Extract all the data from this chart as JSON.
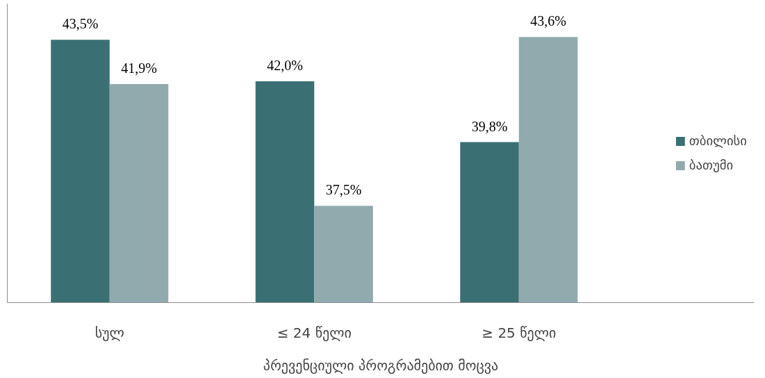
{
  "chart_data": {
    "type": "bar",
    "categories": [
      "სულ",
      "≤ 24 წელი",
      "≥ 25 წელი"
    ],
    "xlabel": "პრევენციული პროგრამებით მოცვა",
    "series": [
      {
        "name": "თბილისი",
        "color": "#3a7074",
        "values": [
          43.5,
          42.0,
          39.8
        ],
        "value_labels": [
          "43,5%",
          "42,0%",
          "39,8%"
        ]
      },
      {
        "name": "ბათუმი",
        "color": "#91aaad",
        "values": [
          41.9,
          37.5,
          43.6
        ],
        "value_labels": [
          "41,9%",
          "37,5%",
          "43,6%"
        ]
      }
    ],
    "ylim": [
      34,
      44.8
    ],
    "legend": "right",
    "grid": false
  }
}
